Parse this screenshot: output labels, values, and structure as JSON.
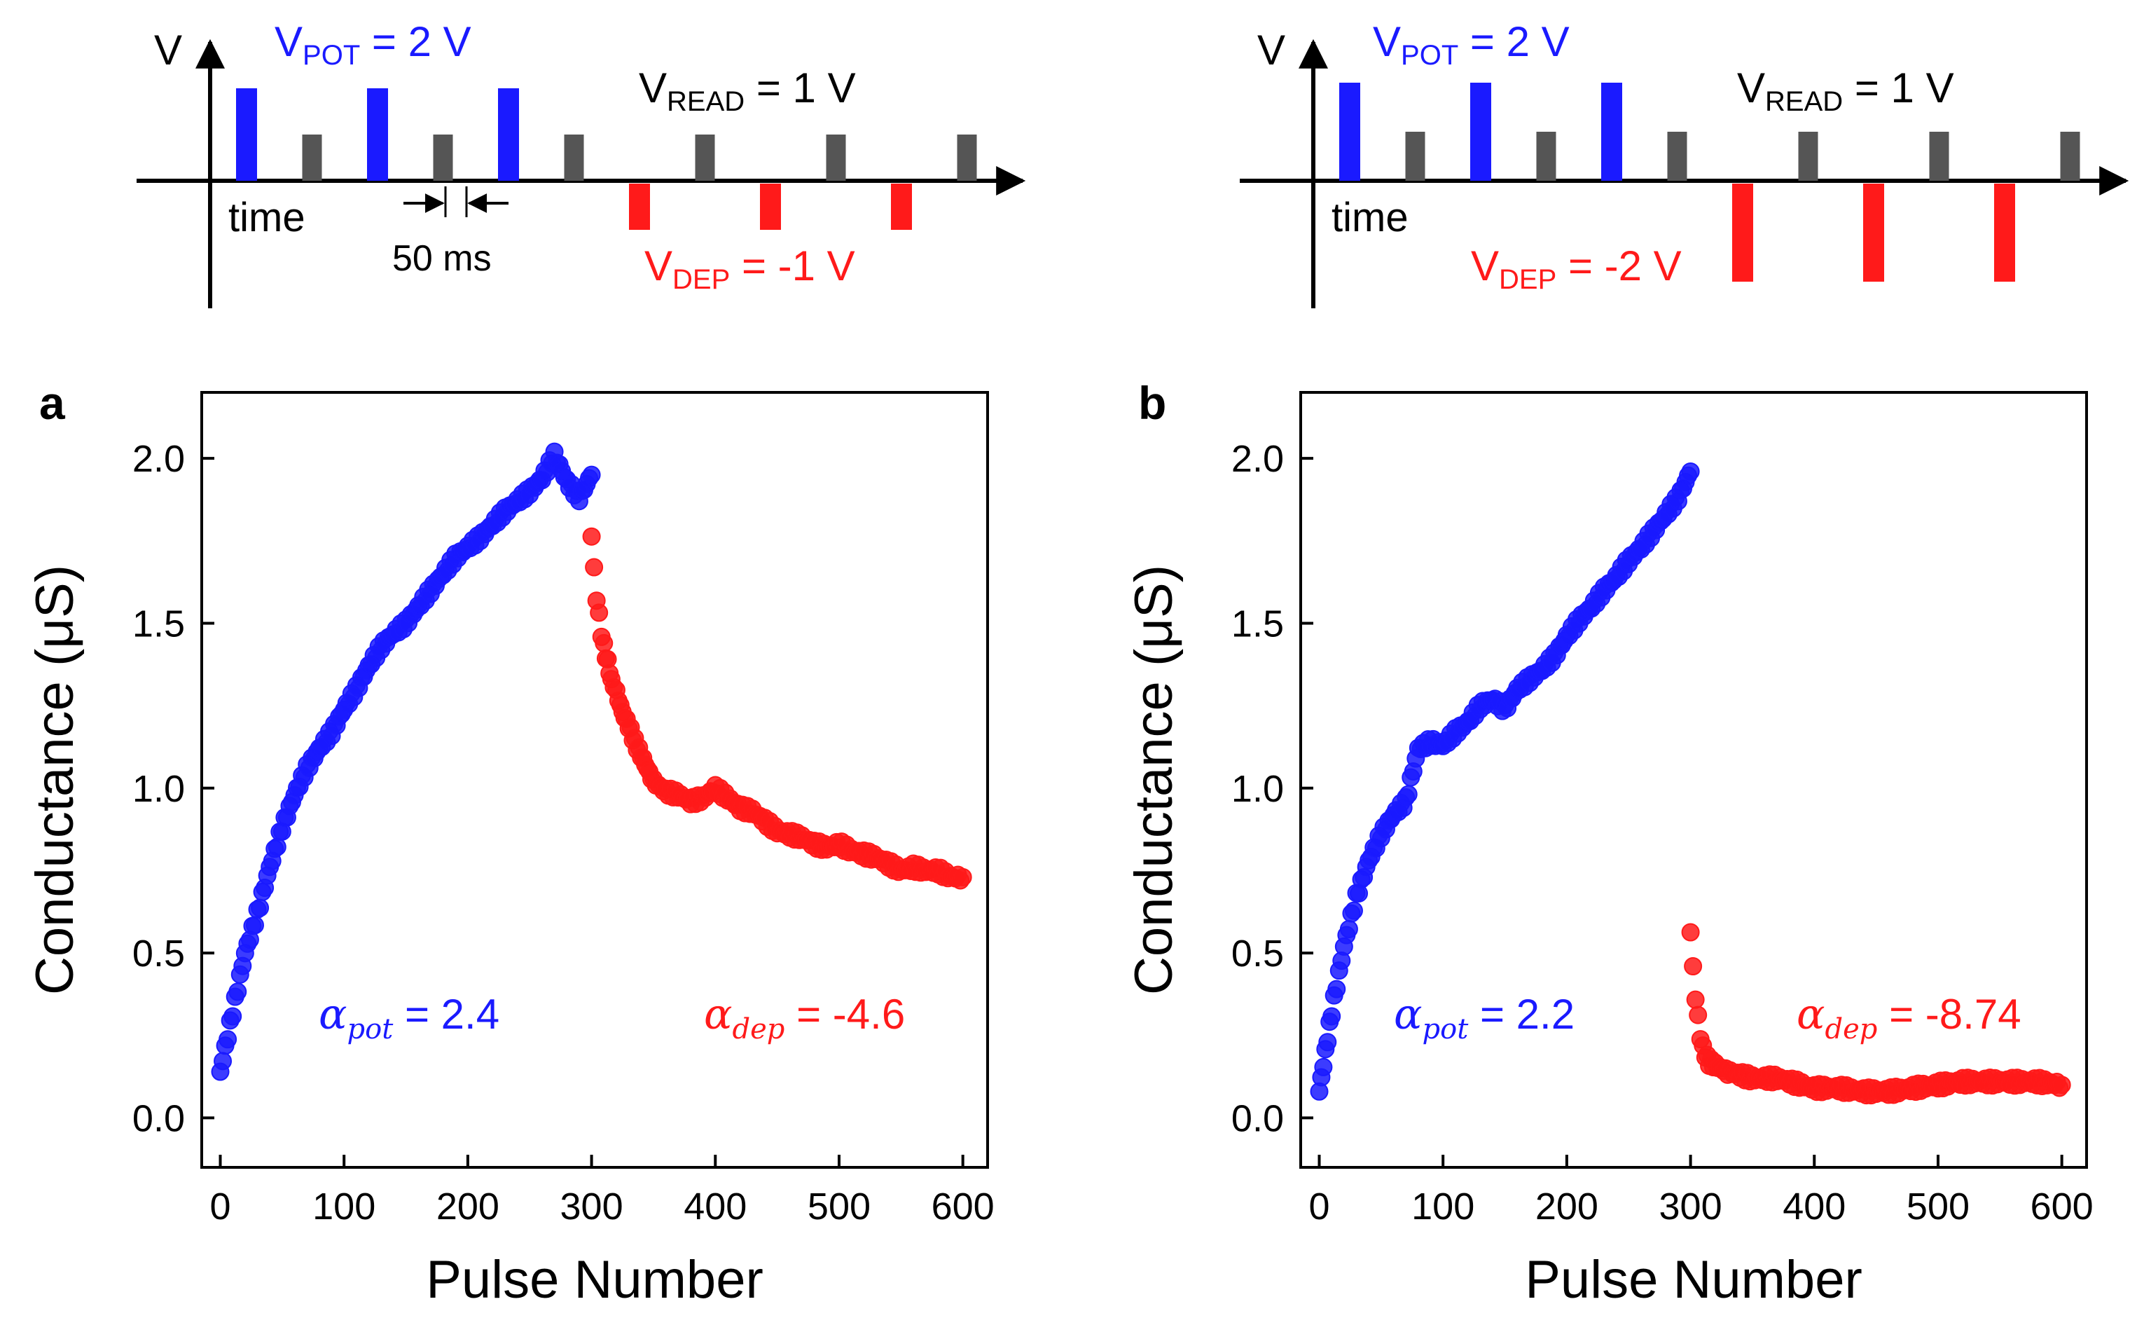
{
  "colors": {
    "potentiation": "#1a1aff",
    "depression": "#ff1a1a",
    "read": "#555555",
    "axis": "#000000"
  },
  "schematics": [
    {
      "axis_v": "V",
      "pot_label": {
        "main": "V",
        "sub": "POT",
        "rest": " = 2 V"
      },
      "read_label": {
        "main": "V",
        "sub": "READ",
        "rest": " = 1 V"
      },
      "dep_label": {
        "main": "V",
        "sub": "DEP",
        "rest": " = -1 V"
      },
      "time_label": "time",
      "interval_label": "50 ms",
      "pot_amplitude_v": 2,
      "read_amplitude_v": 1,
      "dep_amplitude_v": -1,
      "pulse_sequence": [
        "pot",
        "read",
        "pot",
        "read",
        "pot",
        "read",
        "dep",
        "read",
        "dep",
        "read",
        "dep",
        "read"
      ]
    },
    {
      "axis_v": "V",
      "pot_label": {
        "main": "V",
        "sub": "POT",
        "rest": " = 2 V"
      },
      "read_label": {
        "main": "V",
        "sub": "READ",
        "rest": " = 1 V"
      },
      "dep_label": {
        "main": "V",
        "sub": "DEP",
        "rest": " = -2 V"
      },
      "time_label": "time",
      "pot_amplitude_v": 2,
      "read_amplitude_v": 1,
      "dep_amplitude_v": -2,
      "pulse_sequence": [
        "pot",
        "read",
        "pot",
        "read",
        "pot",
        "read",
        "dep",
        "read",
        "dep",
        "read",
        "dep",
        "read"
      ]
    }
  ],
  "chart_data": [
    {
      "type": "scatter",
      "panel_label": "a",
      "xlabel": "Pulse Number",
      "ylabel": "Conductance (μS)",
      "xlim": [
        -15,
        620
      ],
      "ylim": [
        -0.15,
        2.2
      ],
      "xticks": [
        0,
        100,
        200,
        300,
        400,
        500,
        600
      ],
      "yticks": [
        0.0,
        0.5,
        1.0,
        1.5,
        2.0
      ],
      "xtick_labels": [
        "0",
        "100",
        "200",
        "300",
        "400",
        "500",
        "600"
      ],
      "ytick_labels": [
        "0.0",
        "0.5",
        "1.0",
        "1.5",
        "2.0"
      ],
      "annotations": [
        {
          "symbol": "α",
          "sub": "pot",
          "text": " = 2.4",
          "series": "potentiation"
        },
        {
          "symbol": "α",
          "sub": "dep",
          "text": " = -4.6",
          "series": "depression"
        }
      ],
      "series": [
        {
          "name": "potentiation",
          "color": "#1a1aff",
          "x": [
            0,
            10,
            20,
            30,
            40,
            50,
            60,
            70,
            80,
            90,
            100,
            110,
            120,
            130,
            140,
            150,
            160,
            170,
            180,
            190,
            200,
            210,
            220,
            230,
            240,
            250,
            260,
            270,
            280,
            290,
            300
          ],
          "y": [
            0.14,
            0.32,
            0.5,
            0.62,
            0.76,
            0.88,
            0.98,
            1.06,
            1.12,
            1.17,
            1.24,
            1.3,
            1.37,
            1.43,
            1.47,
            1.5,
            1.55,
            1.6,
            1.65,
            1.7,
            1.73,
            1.76,
            1.8,
            1.84,
            1.87,
            1.9,
            1.94,
            2.01,
            1.93,
            1.88,
            1.95
          ]
        },
        {
          "name": "depression",
          "color": "#ff1a1a",
          "x": [
            300,
            302,
            304,
            306,
            308,
            310,
            313,
            316,
            320,
            325,
            330,
            335,
            340,
            345,
            350,
            360,
            370,
            380,
            390,
            400,
            410,
            420,
            430,
            440,
            450,
            460,
            470,
            480,
            490,
            500,
            510,
            520,
            530,
            540,
            550,
            560,
            570,
            580,
            590,
            600
          ],
          "y": [
            1.77,
            1.66,
            1.58,
            1.52,
            1.47,
            1.43,
            1.38,
            1.33,
            1.29,
            1.23,
            1.19,
            1.14,
            1.1,
            1.06,
            1.02,
            0.99,
            0.98,
            0.96,
            0.97,
            1.0,
            0.97,
            0.94,
            0.93,
            0.9,
            0.87,
            0.86,
            0.85,
            0.83,
            0.82,
            0.83,
            0.81,
            0.8,
            0.79,
            0.77,
            0.75,
            0.76,
            0.75,
            0.75,
            0.73,
            0.73
          ]
        }
      ]
    },
    {
      "type": "scatter",
      "panel_label": "b",
      "xlabel": "Pulse Number",
      "ylabel": "Conductance (μS)",
      "xlim": [
        -15,
        620
      ],
      "ylim": [
        -0.15,
        2.2
      ],
      "xticks": [
        0,
        100,
        200,
        300,
        400,
        500,
        600
      ],
      "yticks": [
        0.0,
        0.5,
        1.0,
        1.5,
        2.0
      ],
      "xtick_labels": [
        "0",
        "100",
        "200",
        "300",
        "400",
        "500",
        "600"
      ],
      "ytick_labels": [
        "0.0",
        "0.5",
        "1.0",
        "1.5",
        "2.0"
      ],
      "annotations": [
        {
          "symbol": "α",
          "sub": "pot",
          "text": " = 2.2",
          "series": "potentiation"
        },
        {
          "symbol": "α",
          "sub": "dep",
          "text": " = -8.74",
          "series": "depression"
        }
      ],
      "series": [
        {
          "name": "potentiation",
          "color": "#1a1aff",
          "x": [
            0,
            5,
            10,
            20,
            30,
            40,
            50,
            60,
            70,
            80,
            90,
            100,
            110,
            120,
            130,
            140,
            150,
            160,
            170,
            180,
            190,
            200,
            210,
            220,
            230,
            240,
            250,
            260,
            270,
            280,
            290,
            300
          ],
          "y": [
            0.08,
            0.2,
            0.32,
            0.52,
            0.67,
            0.78,
            0.86,
            0.92,
            0.96,
            1.12,
            1.14,
            1.13,
            1.17,
            1.2,
            1.25,
            1.27,
            1.24,
            1.3,
            1.33,
            1.36,
            1.4,
            1.46,
            1.51,
            1.55,
            1.6,
            1.64,
            1.69,
            1.73,
            1.78,
            1.83,
            1.88,
            1.96
          ]
        },
        {
          "name": "depression",
          "color": "#ff1a1a",
          "x": [
            300,
            302,
            304,
            306,
            308,
            310,
            312,
            315,
            320,
            325,
            330,
            340,
            350,
            360,
            370,
            380,
            390,
            400,
            420,
            440,
            460,
            480,
            500,
            520,
            540,
            560,
            580,
            600
          ],
          "y": [
            0.57,
            0.45,
            0.37,
            0.3,
            0.25,
            0.21,
            0.19,
            0.17,
            0.16,
            0.15,
            0.14,
            0.13,
            0.12,
            0.12,
            0.12,
            0.11,
            0.1,
            0.09,
            0.09,
            0.08,
            0.08,
            0.09,
            0.1,
            0.11,
            0.11,
            0.11,
            0.11,
            0.1
          ]
        }
      ]
    }
  ]
}
